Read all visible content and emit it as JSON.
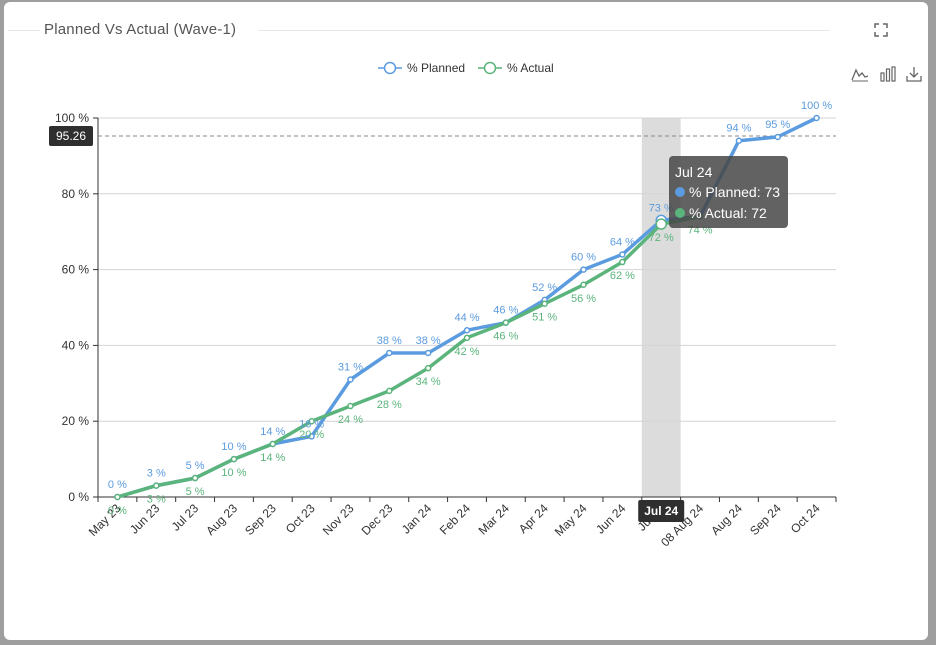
{
  "card": {
    "title": "Planned Vs Actual (Wave-1)"
  },
  "icons": {
    "expand": "fullscreen-icon",
    "line": "line-chart-icon",
    "bar": "bar-chart-icon",
    "download": "download-icon"
  },
  "chart_data": {
    "type": "line",
    "categories": [
      "May 23",
      "Jun 23",
      "Jul 23",
      "Aug 23",
      "Sep 23",
      "Oct 23",
      "Nov 23",
      "Dec 23",
      "Jan 24",
      "Feb 24",
      "Mar 24",
      "Apr 24",
      "May 24",
      "Jun 24",
      "Jul 24",
      "08 Aug 24",
      "Aug 24",
      "Sep 24",
      "Oct 24"
    ],
    "series": [
      {
        "name": "% Planned",
        "color": "#5b9bdf",
        "values": [
          0,
          3,
          5,
          10,
          14,
          16,
          31,
          38,
          38,
          44,
          46,
          52,
          60,
          64,
          73,
          74,
          94,
          95,
          100
        ]
      },
      {
        "name": "% Actual",
        "color": "#5bb47c",
        "values": [
          0,
          3,
          5,
          10,
          14,
          20,
          24,
          28,
          34,
          42,
          46,
          51,
          56,
          62,
          72,
          74,
          null,
          null,
          null
        ]
      }
    ],
    "value_labels": {
      "planned": [
        "0 %",
        "3 %",
        "5 %",
        "10 %",
        "14 %",
        "16 %",
        "31 %",
        "38 %",
        "38 %",
        "44 %",
        "46 %",
        "52 %",
        "60 %",
        "64 %",
        "73 %",
        "",
        "94 %",
        "95 %",
        "100 %"
      ],
      "actual": [
        "0 %",
        "3 %",
        "5 %",
        "10 %",
        "14 %",
        "20 %",
        "24 %",
        "28 %",
        "34 %",
        "42 %",
        "46 %",
        "51 %",
        "56 %",
        "62 %",
        "72 %",
        "74 %",
        "",
        "",
        ""
      ]
    },
    "y_ticks": [
      "0 %",
      "20 %",
      "40 %",
      "60 %",
      "80 %",
      "100 %"
    ],
    "ylim": [
      0,
      100
    ],
    "grid": true,
    "legend_position": "top-center",
    "reference_line": {
      "value": 95.26,
      "label": "95.26"
    },
    "highlight": {
      "category": "Jul 24",
      "axis_label": "Jul 24",
      "tooltip_title": "Jul 24",
      "rows": [
        "% Planned: 73",
        "% Actual: 72"
      ]
    },
    "xlabel": "",
    "ylabel": ""
  }
}
